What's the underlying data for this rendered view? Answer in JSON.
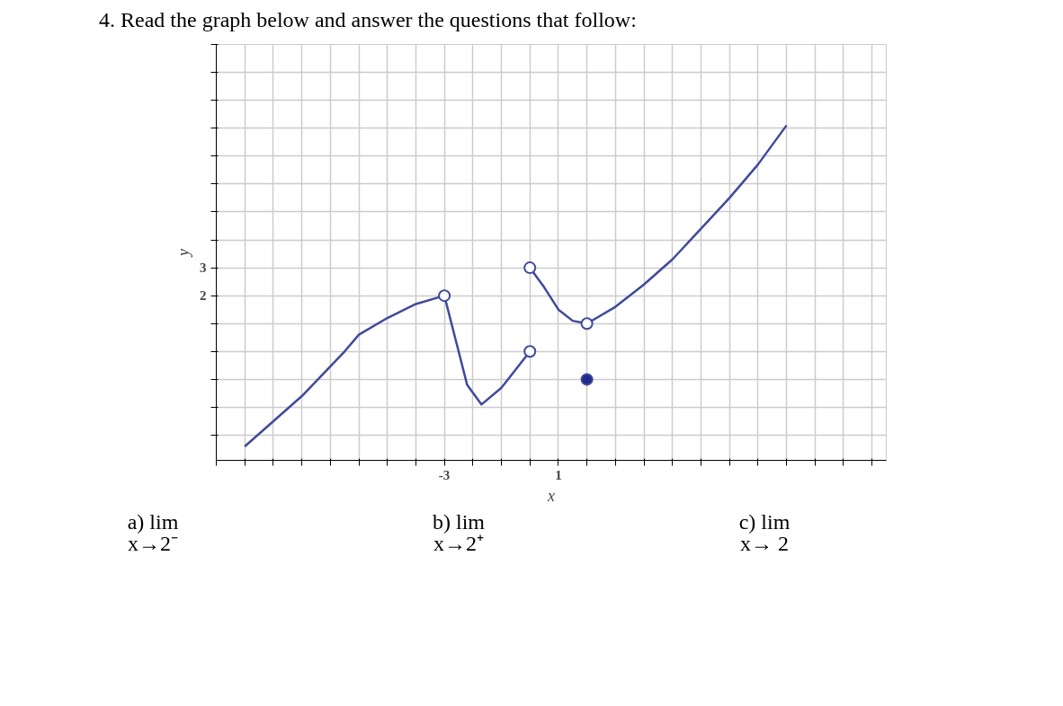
{
  "chart_data": {
    "type": "line",
    "title": "4.  Read the graph below and answer the questions that follow:",
    "xlabel": "x",
    "ylabel": "y",
    "series": [
      {
        "color": "#3f4a9a",
        "x": [
          -10,
          -8,
          -6.5,
          -6,
          -5,
          -4,
          -3
        ],
        "values": [
          -3.4,
          -1.6,
          0,
          0.6,
          1.2,
          1.7,
          2
        ]
      },
      {
        "color": "#3f4a9a",
        "x": [
          -3,
          -2.5,
          -2.2,
          -1.7,
          -1,
          0
        ],
        "values": [
          2,
          0,
          -1.2,
          -1.9,
          -1.3,
          0
        ]
      },
      {
        "color": "#3f4a9a",
        "x": [
          0,
          0.5,
          1,
          1.5,
          2,
          3,
          4,
          5,
          6,
          7,
          8,
          9
        ],
        "values": [
          3,
          2.3,
          1.5,
          1.1,
          1,
          1.6,
          2.4,
          3.3,
          4.4,
          5.5,
          6.7,
          8.1
        ]
      },
      {
        "type": "scatter",
        "marker": "circle",
        "color": "#ffffff",
        "x": [
          -3,
          0,
          0,
          2
        ],
        "values": [
          2,
          0,
          3,
          1
        ]
      },
      {
        "type": "scatter",
        "marker": "circle",
        "color": "#1f2a8a",
        "x": [
          2
        ],
        "values": [
          -1
        ]
      }
    ],
    "xlim": [
      -11,
      12.5
    ],
    "ylim": [
      -3.9,
      11
    ],
    "xticks": [
      {
        "value": -11,
        "label": null
      },
      {
        "value": -10,
        "label": null
      },
      {
        "value": -9,
        "label": null
      },
      {
        "value": -8,
        "label": null
      },
      {
        "value": -7,
        "label": null
      },
      {
        "value": -6,
        "label": null
      },
      {
        "value": -5,
        "label": null
      },
      {
        "value": -4,
        "label": null
      },
      -3,
      {
        "value": -2,
        "label": null
      },
      {
        "value": -1,
        "label": null
      },
      {
        "value": 0,
        "label": null
      },
      1,
      {
        "value": 2,
        "label": null
      },
      {
        "value": 3,
        "label": null
      },
      {
        "value": 4,
        "label": null
      },
      {
        "value": 5,
        "label": null
      },
      {
        "value": 6,
        "label": null
      },
      {
        "value": 7,
        "label": null
      },
      {
        "value": 8,
        "label": null
      },
      {
        "value": 9,
        "label": null
      },
      {
        "value": 10,
        "label": null
      },
      {
        "value": 11,
        "label": null
      },
      {
        "value": 12,
        "label": null
      }
    ],
    "yticks": [
      {
        "value": -3,
        "label": null
      },
      {
        "value": -2,
        "label": null
      },
      {
        "value": -1,
        "label": null
      },
      {
        "value": 0,
        "label": null
      },
      {
        "value": 1,
        "label": null
      },
      2,
      3,
      {
        "value": 4,
        "label": null
      },
      {
        "value": 5,
        "label": null
      },
      {
        "value": 6,
        "label": null
      },
      {
        "value": 7,
        "label": null
      },
      {
        "value": 8,
        "label": null
      },
      {
        "value": 9,
        "label": null
      },
      {
        "value": 10,
        "label": null
      },
      {
        "value": 11,
        "label": null
      }
    ],
    "grid": true,
    "annotations": [
      "a)  lim\nx→2⁻",
      "b)  lim\nx→2⁺",
      "c)  lim\nx→ 2"
    ]
  }
}
